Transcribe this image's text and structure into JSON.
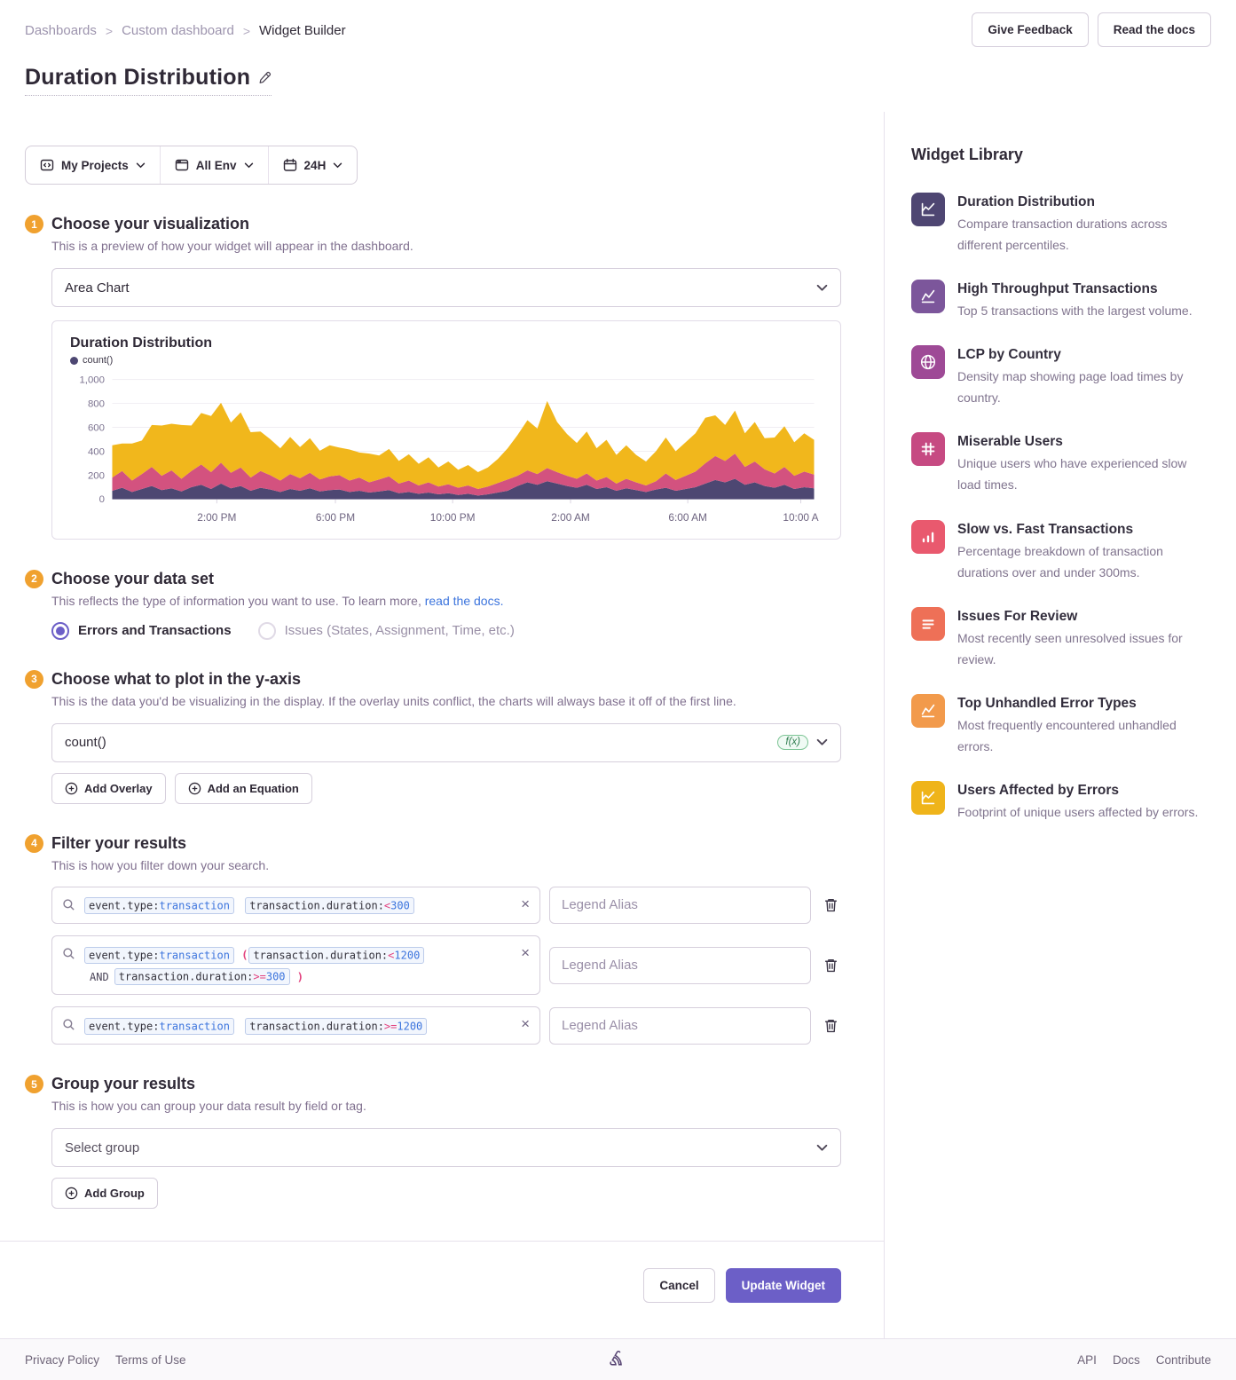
{
  "breadcrumb": {
    "items": [
      "Dashboards",
      "Custom dashboard",
      "Widget Builder"
    ]
  },
  "header": {
    "give_feedback": "Give Feedback",
    "read_docs": "Read the docs",
    "title": "Duration Distribution"
  },
  "filters": {
    "projects": "My Projects",
    "env": "All Env",
    "time": "24H"
  },
  "steps": {
    "step1": {
      "num": "1",
      "title": "Choose your visualization",
      "desc": "This is a preview of how your widget will appear in the dashboard.",
      "select_value": "Area Chart"
    },
    "step2": {
      "num": "2",
      "title": "Choose your data set",
      "desc_prefix": "This reflects the type of information you want to use. To learn more, ",
      "desc_link": "read the docs.",
      "options": [
        {
          "label": "Errors and Transactions",
          "selected": true
        },
        {
          "label": "Issues (States, Assignment, Time, etc.)",
          "selected": false
        }
      ]
    },
    "step3": {
      "num": "3",
      "title": "Choose what to plot in the y-axis",
      "desc": "This is the data you'd be visualizing in the display. If the overlay units conflict, the charts will always base it off of the first line.",
      "field_value": "count()",
      "fx_badge": "f(x)",
      "add_overlay": "Add Overlay",
      "add_equation": "Add an Equation"
    },
    "step4": {
      "num": "4",
      "title": "Filter your results",
      "desc": "This is how you filter down your search.",
      "legend_placeholder": "Legend Alias",
      "rows": [
        {
          "tokens": [
            {
              "t": "tok",
              "parts": [
                [
                  "event.type:",
                  "k"
                ],
                [
                  "transaction",
                  "v"
                ]
              ]
            },
            {
              "t": "tok",
              "parts": [
                [
                  "transaction.duration:",
                  "k"
                ],
                [
                  "<",
                  "o"
                ],
                [
                  "300",
                  "v"
                ]
              ]
            }
          ]
        },
        {
          "tokens": [
            {
              "t": "tok",
              "parts": [
                [
                  "event.type:",
                  "k"
                ],
                [
                  "transaction",
                  "v"
                ]
              ]
            },
            {
              "t": "op",
              "s": "("
            },
            {
              "t": "tok",
              "parts": [
                [
                  "transaction.duration:",
                  "k"
                ],
                [
                  "<",
                  "o"
                ],
                [
                  "1200",
                  "v"
                ]
              ]
            },
            {
              "t": "and",
              "s": "AND"
            },
            {
              "t": "tok",
              "parts": [
                [
                  "transaction.duration:",
                  "k"
                ],
                [
                  ">=",
                  "o"
                ],
                [
                  "300",
                  "v"
                ]
              ]
            },
            {
              "t": "op",
              "s": ")"
            }
          ]
        },
        {
          "tokens": [
            {
              "t": "tok",
              "parts": [
                [
                  "event.type:",
                  "k"
                ],
                [
                  "transaction",
                  "v"
                ]
              ]
            },
            {
              "t": "tok",
              "parts": [
                [
                  "transaction.duration:",
                  "k"
                ],
                [
                  ">=",
                  "o"
                ],
                [
                  "1200",
                  "v"
                ]
              ]
            }
          ]
        }
      ]
    },
    "step5": {
      "num": "5",
      "title": "Group your results",
      "desc": "This is how you can group your data result by field or tag.",
      "select_placeholder": "Select group",
      "add_group": "Add Group"
    }
  },
  "chart_data": {
    "type": "area",
    "stacked": true,
    "title": "Duration Distribution",
    "legend": [
      "count()"
    ],
    "ylim": [
      0,
      1000
    ],
    "yticks": [
      0,
      200,
      400,
      600,
      800,
      1000
    ],
    "grid": true,
    "legend_position": "top-left",
    "xticks": [
      {
        "label": "2:00 PM",
        "pos": 0.149
      },
      {
        "label": "6:00 PM",
        "pos": 0.318
      },
      {
        "label": "10:00 PM",
        "pos": 0.485
      },
      {
        "label": "2:00 AM",
        "pos": 0.653
      },
      {
        "label": "6:00 AM",
        "pos": 0.82
      },
      {
        "label": "10:00 A",
        "pos": 0.981
      }
    ],
    "series": [
      {
        "name": "count() stack-bottom",
        "color": "#4d4772",
        "values": [
          70,
          95,
          60,
          85,
          110,
          75,
          90,
          65,
          100,
          120,
          85,
          130,
          90,
          110,
          70,
          95,
          80,
          60,
          85,
          70,
          90,
          65,
          75,
          80,
          60,
          70,
          55,
          65,
          75,
          50,
          60,
          45,
          55,
          40,
          50,
          35,
          45,
          30,
          40,
          55,
          70,
          110,
          140,
          120,
          150,
          130,
          110,
          95,
          120,
          85,
          100,
          70,
          90,
          75,
          60,
          80,
          95,
          70,
          85,
          100,
          130,
          160,
          140,
          170,
          120,
          140,
          110,
          95,
          120,
          85,
          100,
          90
        ]
      },
      {
        "name": "count() stack-middle",
        "color": "#d3527f",
        "values": [
          110,
          140,
          95,
          125,
          160,
          120,
          150,
          105,
          135,
          170,
          140,
          175,
          130,
          155,
          110,
          140,
          120,
          95,
          125,
          105,
          130,
          100,
          115,
          120,
          95,
          110,
          85,
          100,
          115,
          80,
          95,
          70,
          85,
          65,
          75,
          60,
          70,
          55,
          65,
          80,
          95,
          85,
          100,
          90,
          110,
          95,
          85,
          75,
          95,
          70,
          85,
          60,
          80,
          65,
          55,
          70,
          120,
          90,
          110,
          130,
          170,
          200,
          180,
          210,
          150,
          175,
          140,
          120,
          150,
          110,
          130,
          115
        ]
      },
      {
        "name": "count() stack-top",
        "color": "#f1b71c",
        "values": [
          270,
          230,
          310,
          280,
          350,
          420,
          390,
          450,
          380,
          430,
          470,
          500,
          420,
          460,
          380,
          330,
          300,
          270,
          310,
          260,
          290,
          240,
          260,
          230,
          260,
          210,
          240,
          200,
          230,
          190,
          220,
          180,
          210,
          160,
          190,
          150,
          170,
          140,
          160,
          200,
          260,
          340,
          420,
          380,
          560,
          420,
          350,
          300,
          350,
          270,
          310,
          240,
          280,
          230,
          200,
          250,
          300,
          240,
          280,
          320,
          380,
          340,
          300,
          360,
          280,
          330,
          260,
          300,
          340,
          280,
          320,
          290
        ]
      }
    ]
  },
  "widget_library": {
    "title": "Widget Library",
    "items": [
      {
        "name": "Duration Distribution",
        "desc": "Compare transaction durations across different percentiles.",
        "color": "#4e4672",
        "icon": "area-chart"
      },
      {
        "name": "High Throughput Transactions",
        "desc": "Top 5 transactions with the largest volume.",
        "color": "#7c569b",
        "icon": "line-chart"
      },
      {
        "name": "LCP by Country",
        "desc": "Density map showing page load times by country.",
        "color": "#9e4a96",
        "icon": "globe"
      },
      {
        "name": "Miserable Users",
        "desc": "Unique users who have experienced slow load times.",
        "color": "#c64a82",
        "icon": "hash"
      },
      {
        "name": "Slow vs. Fast Transactions",
        "desc": "Percentage breakdown of transaction durations over and under 300ms.",
        "color": "#e9596e",
        "icon": "bar-chart"
      },
      {
        "name": "Issues For Review",
        "desc": "Most recently seen unresolved issues for review.",
        "color": "#ee7057",
        "icon": "list"
      },
      {
        "name": "Top Unhandled Error Types",
        "desc": "Most frequently encountered unhandled errors.",
        "color": "#f29a4b",
        "icon": "line-chart"
      },
      {
        "name": "Users Affected by Errors",
        "desc": "Footprint of unique users affected by errors.",
        "color": "#efb41a",
        "icon": "area-chart"
      }
    ]
  },
  "actions": {
    "cancel": "Cancel",
    "update": "Update Widget"
  },
  "footer": {
    "left": [
      "Privacy Policy",
      "Terms of Use"
    ],
    "right": [
      "API",
      "Docs",
      "Contribute"
    ]
  }
}
